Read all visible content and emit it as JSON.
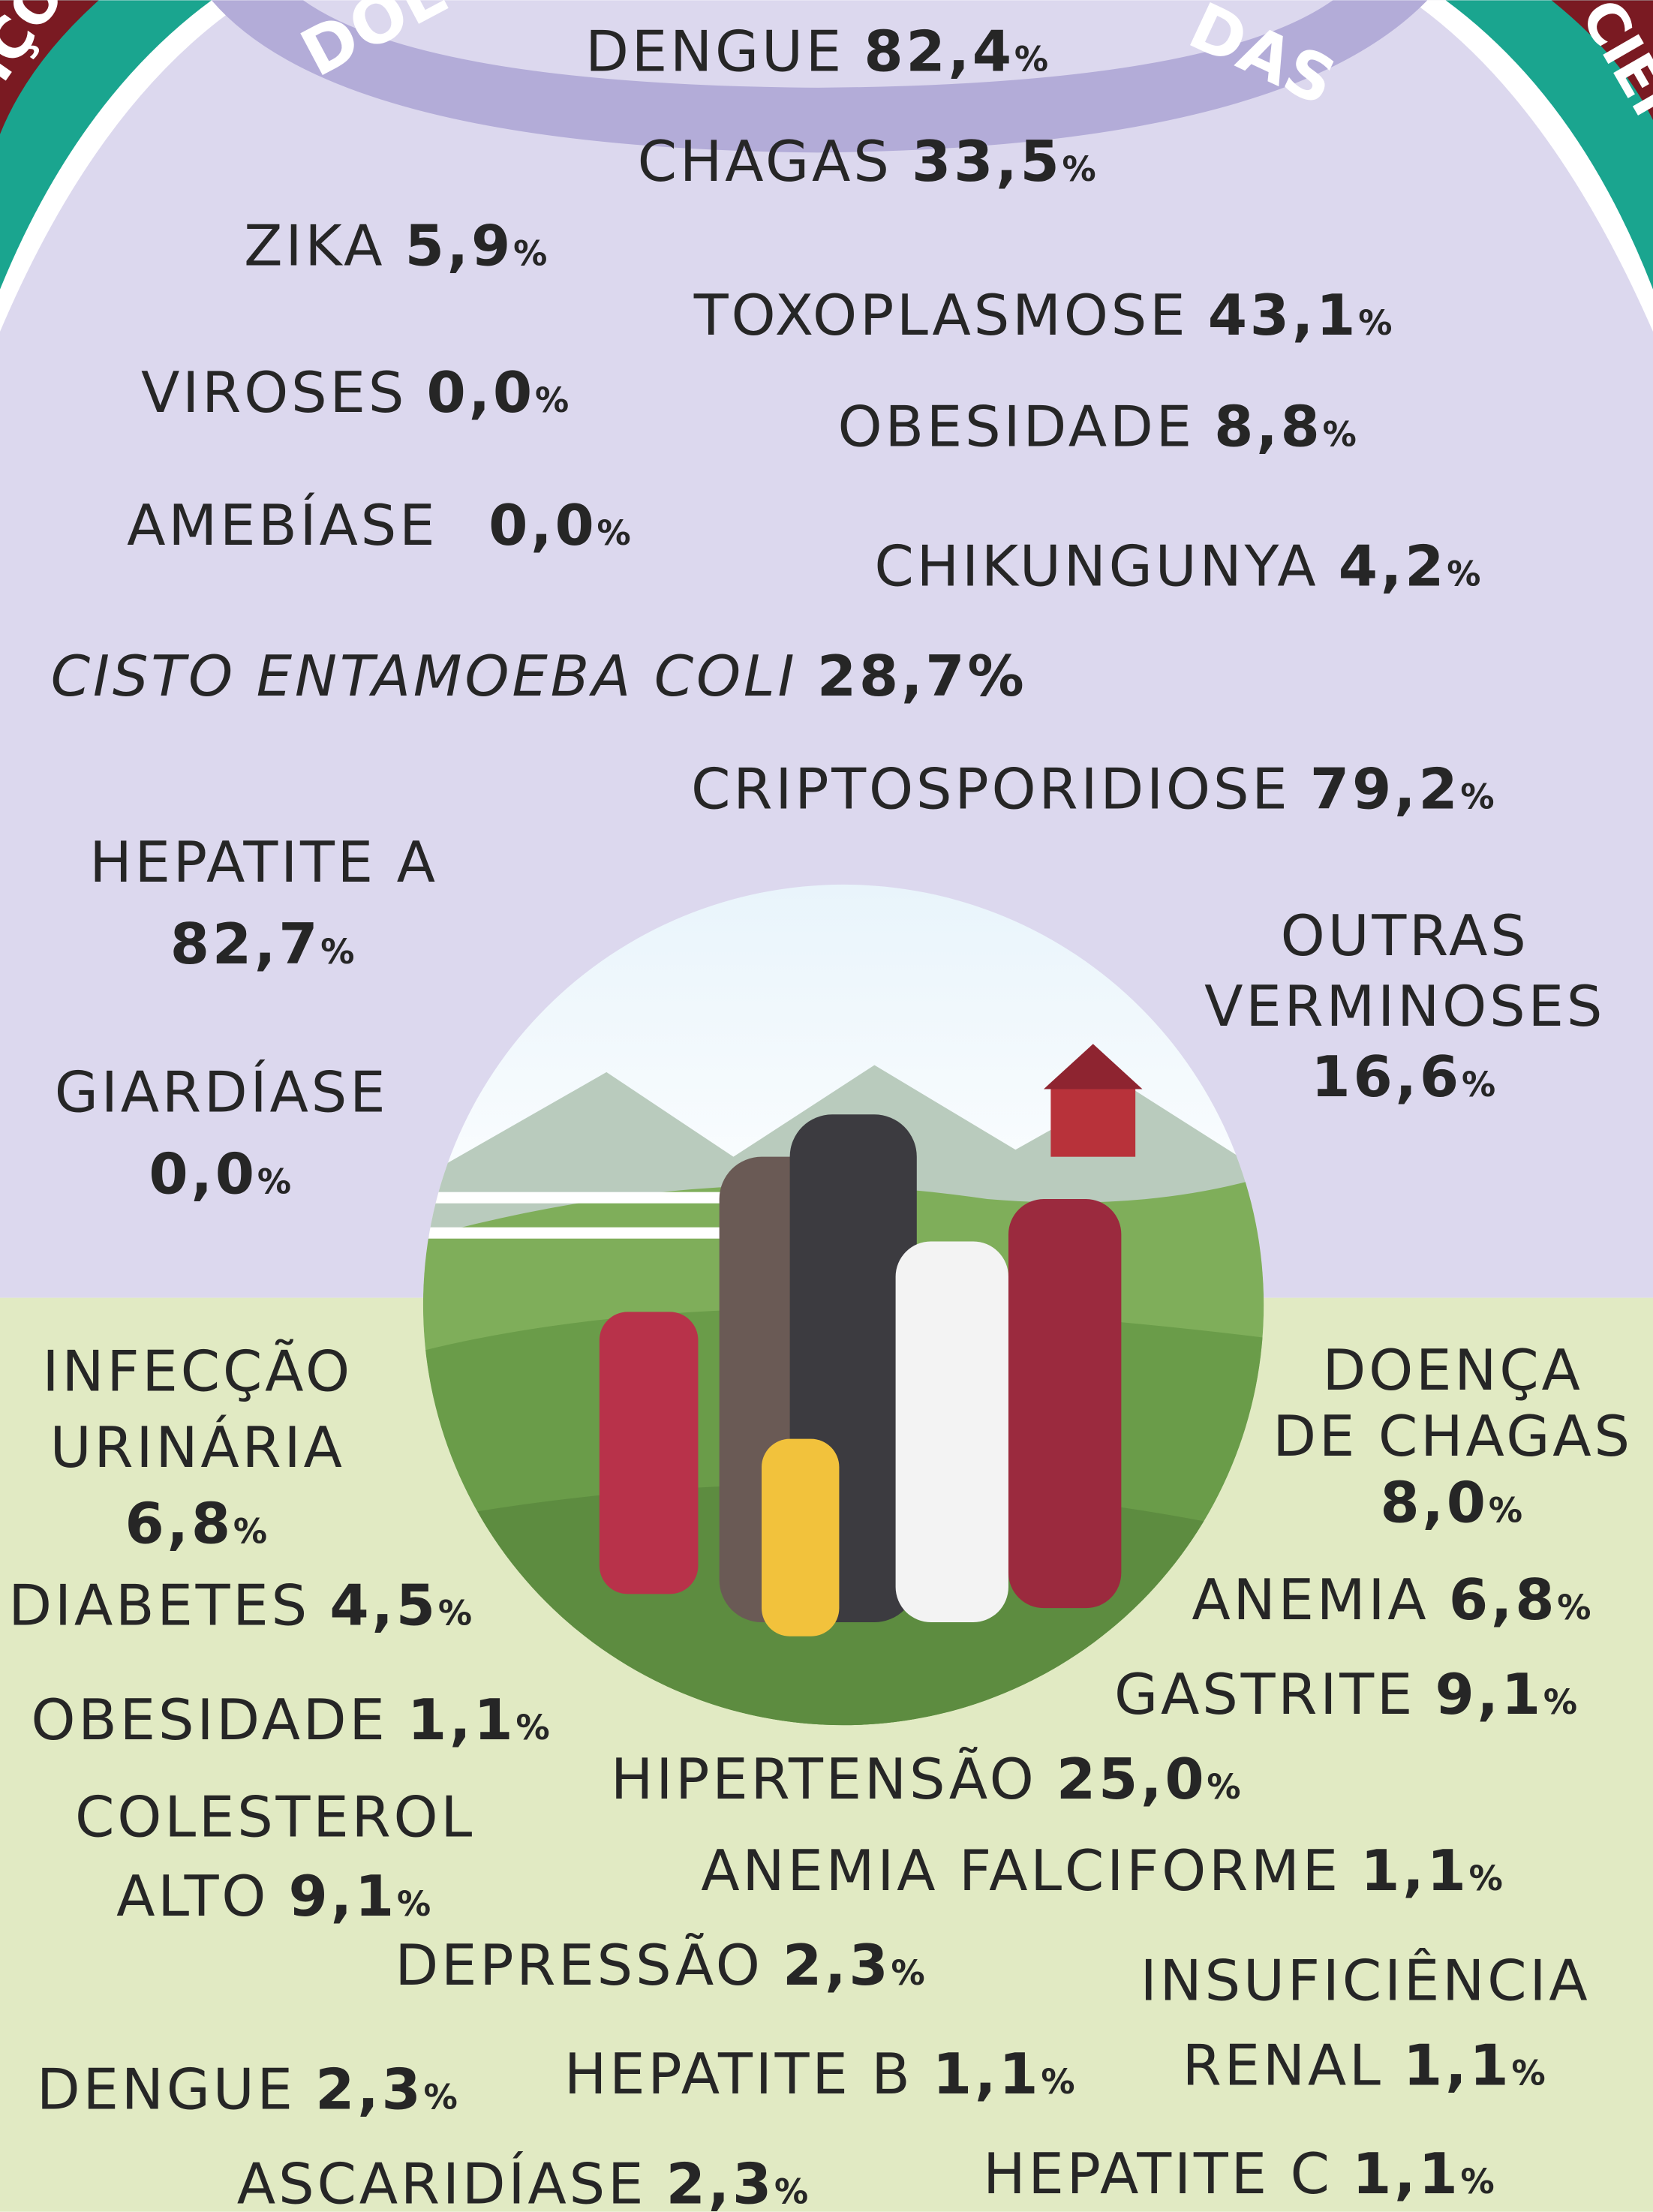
{
  "header": {
    "band_left": "DOE",
    "band_right": "DAS",
    "edge_left": "IÇÕ",
    "edge_right": "CIEI"
  },
  "items": [
    {
      "name": "DENGUE",
      "value": "82,4",
      "unit": "%"
    },
    {
      "name": "CHAGAS",
      "value": "33,5",
      "unit": "%"
    },
    {
      "name": "ZIKA",
      "value": "5,9",
      "unit": "%"
    },
    {
      "name": "TOXOPLASMOSE",
      "value": "43,1",
      "unit": "%"
    },
    {
      "name": "VIROSES",
      "value": "0,0",
      "unit": "%"
    },
    {
      "name": "OBESIDADE",
      "value": "8,8",
      "unit": "%"
    },
    {
      "name": "AMEBÍASE",
      "value": "0,0",
      "unit": "%"
    },
    {
      "name": "CHIKUNGUNYA",
      "value": "4,2",
      "unit": "%"
    },
    {
      "name": "CISTO ENTAMOEBA COLI",
      "value": "28,7",
      "unit": "%"
    },
    {
      "name": "CRIPTOSPORIDIOSE",
      "value": "79,2",
      "unit": "%"
    },
    {
      "name": "HEPATITE A",
      "value": "82,7",
      "unit": "%"
    },
    {
      "name": [
        "OUTRAS",
        "VERMINOSES"
      ],
      "value": "16,6",
      "unit": "%"
    },
    {
      "name": "GIARDÍASE",
      "value": "0,0",
      "unit": "%"
    },
    {
      "name": [
        "INFECÇÃO",
        "URINÁRIA"
      ],
      "value": "6,8",
      "unit": "%"
    },
    {
      "name": "DIABETES",
      "value": "4,5",
      "unit": "%"
    },
    {
      "name": [
        "DOENÇA",
        "DE CHAGAS"
      ],
      "value": "8,0",
      "unit": "%"
    },
    {
      "name": "ANEMIA",
      "value": "6,8",
      "unit": "%"
    },
    {
      "name": "GASTRITE",
      "value": "9,1",
      "unit": "%"
    },
    {
      "name": "OBESIDADE",
      "value": "1,1",
      "unit": "%"
    },
    {
      "name": "HIPERTENSÃO",
      "value": "25,0",
      "unit": "%"
    },
    {
      "name": [
        "COLESTEROL",
        "ALTO"
      ],
      "value": "9,1",
      "unit": "%"
    },
    {
      "name": "ANEMIA FALCIFORME",
      "value": "1,1",
      "unit": "%"
    },
    {
      "name": "DEPRESSÃO",
      "value": "2,3",
      "unit": "%"
    },
    {
      "name": [
        "INSUFICIÊNCIA",
        "RENAL"
      ],
      "value": "1,1",
      "unit": "%"
    },
    {
      "name": "DENGUE",
      "value": "2,3",
      "unit": "%"
    },
    {
      "name": "HEPATITE B",
      "value": "1,1",
      "unit": "%"
    },
    {
      "name": "ASCARIDÍASE",
      "value": "2,3",
      "unit": "%"
    },
    {
      "name": "HEPATITE C",
      "value": "1,1",
      "unit": "%"
    }
  ]
}
